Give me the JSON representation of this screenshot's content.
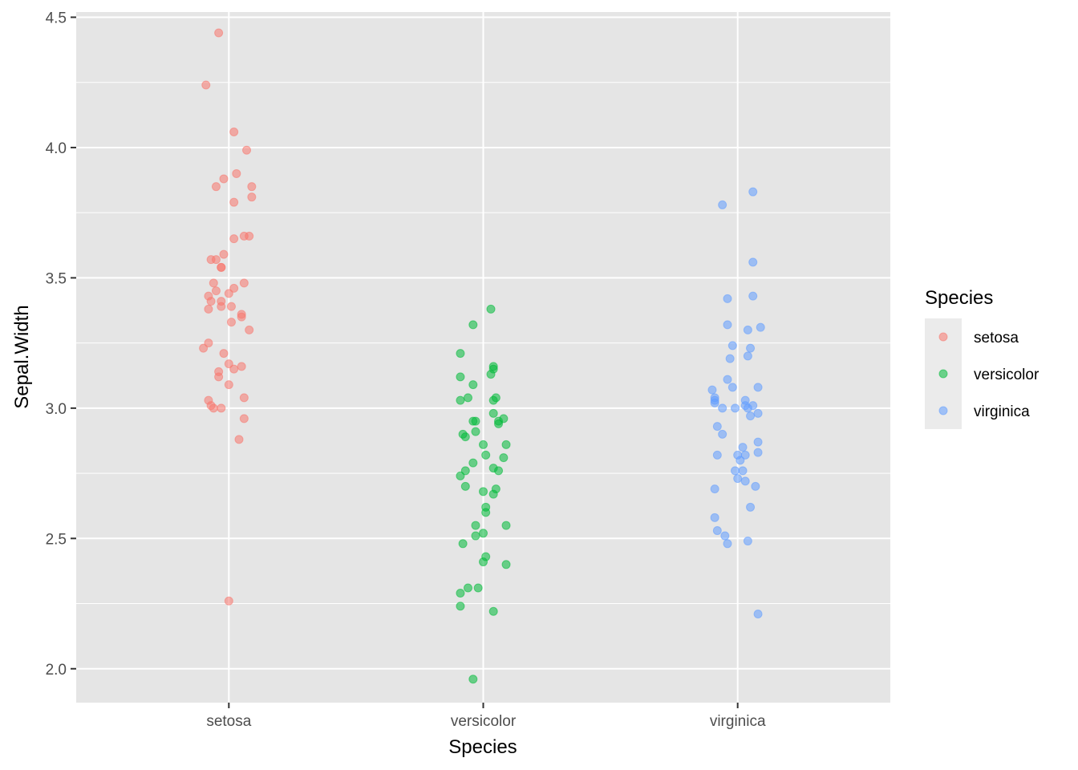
{
  "chart_data": {
    "type": "scatter",
    "subtype": "jitter",
    "title": "",
    "xlabel": "Species",
    "ylabel": "Sepal.Width",
    "categories": [
      "setosa",
      "versicolor",
      "virginica"
    ],
    "ylim": [
      1.87,
      4.52
    ],
    "yticks": [
      2.0,
      2.5,
      3.0,
      3.5,
      4.0,
      4.5
    ],
    "ytick_labels": [
      "2.0",
      "2.5",
      "3.0",
      "3.5",
      "4.0",
      "4.5"
    ],
    "grid": true,
    "legend": {
      "title": "Species",
      "position": "right",
      "entries": [
        "setosa",
        "versicolor",
        "virginica"
      ]
    },
    "colors": {
      "setosa": "#F8766D",
      "versicolor": "#00BA38",
      "virginica": "#619CFF",
      "panel_background": "#E5E5E5",
      "grid": "#FFFFFF"
    },
    "series": [
      {
        "name": "setosa",
        "points": [
          [
            -0.04,
            4.44
          ],
          [
            -0.09,
            4.24
          ],
          [
            0.02,
            4.06
          ],
          [
            0.07,
            3.99
          ],
          [
            0.03,
            3.9
          ],
          [
            -0.02,
            3.88
          ],
          [
            -0.05,
            3.85
          ],
          [
            0.09,
            3.85
          ],
          [
            0.09,
            3.81
          ],
          [
            0.02,
            3.79
          ],
          [
            0.06,
            3.66
          ],
          [
            0.08,
            3.66
          ],
          [
            0.02,
            3.65
          ],
          [
            -0.02,
            3.59
          ],
          [
            -0.07,
            3.57
          ],
          [
            -0.05,
            3.57
          ],
          [
            -0.03,
            3.54
          ],
          [
            -0.03,
            3.54
          ],
          [
            0.06,
            3.48
          ],
          [
            -0.06,
            3.48
          ],
          [
            0.02,
            3.46
          ],
          [
            -0.05,
            3.45
          ],
          [
            0.0,
            3.44
          ],
          [
            -0.08,
            3.43
          ],
          [
            -0.07,
            3.41
          ],
          [
            -0.03,
            3.41
          ],
          [
            -0.03,
            3.39
          ],
          [
            0.01,
            3.39
          ],
          [
            -0.08,
            3.38
          ],
          [
            0.05,
            3.36
          ],
          [
            0.05,
            3.35
          ],
          [
            0.01,
            3.33
          ],
          [
            0.08,
            3.3
          ],
          [
            -0.08,
            3.25
          ],
          [
            -0.1,
            3.23
          ],
          [
            -0.02,
            3.21
          ],
          [
            0.0,
            3.17
          ],
          [
            0.05,
            3.16
          ],
          [
            0.02,
            3.15
          ],
          [
            -0.04,
            3.14
          ],
          [
            -0.04,
            3.12
          ],
          [
            0.0,
            3.09
          ],
          [
            0.06,
            3.04
          ],
          [
            -0.08,
            3.03
          ],
          [
            -0.07,
            3.01
          ],
          [
            -0.06,
            3.0
          ],
          [
            -0.03,
            3.0
          ],
          [
            0.06,
            2.96
          ],
          [
            0.04,
            2.88
          ],
          [
            0.0,
            2.26
          ]
        ]
      },
      {
        "name": "versicolor",
        "points": [
          [
            0.03,
            3.38
          ],
          [
            -0.04,
            3.32
          ],
          [
            -0.09,
            3.21
          ],
          [
            0.04,
            3.16
          ],
          [
            0.04,
            3.15
          ],
          [
            0.03,
            3.13
          ],
          [
            -0.09,
            3.12
          ],
          [
            -0.04,
            3.09
          ],
          [
            -0.06,
            3.04
          ],
          [
            -0.09,
            3.03
          ],
          [
            0.05,
            3.04
          ],
          [
            0.04,
            3.03
          ],
          [
            0.04,
            2.98
          ],
          [
            -0.03,
            2.95
          ],
          [
            0.08,
            2.96
          ],
          [
            -0.04,
            2.95
          ],
          [
            0.06,
            2.95
          ],
          [
            0.06,
            2.94
          ],
          [
            -0.03,
            2.91
          ],
          [
            -0.08,
            2.9
          ],
          [
            -0.07,
            2.89
          ],
          [
            0.09,
            2.86
          ],
          [
            0.0,
            2.86
          ],
          [
            0.01,
            2.82
          ],
          [
            0.08,
            2.81
          ],
          [
            -0.04,
            2.79
          ],
          [
            0.04,
            2.77
          ],
          [
            -0.07,
            2.76
          ],
          [
            0.06,
            2.76
          ],
          [
            -0.09,
            2.74
          ],
          [
            -0.07,
            2.7
          ],
          [
            0.05,
            2.69
          ],
          [
            0.0,
            2.68
          ],
          [
            0.04,
            2.67
          ],
          [
            0.01,
            2.62
          ],
          [
            0.01,
            2.6
          ],
          [
            0.09,
            2.55
          ],
          [
            -0.03,
            2.55
          ],
          [
            0.0,
            2.52
          ],
          [
            -0.03,
            2.51
          ],
          [
            -0.08,
            2.48
          ],
          [
            0.01,
            2.43
          ],
          [
            0.0,
            2.41
          ],
          [
            0.09,
            2.4
          ],
          [
            -0.06,
            2.31
          ],
          [
            -0.02,
            2.31
          ],
          [
            -0.09,
            2.29
          ],
          [
            -0.09,
            2.24
          ],
          [
            0.04,
            2.22
          ],
          [
            -0.04,
            1.96
          ]
        ]
      },
      {
        "name": "virginica",
        "points": [
          [
            0.06,
            3.83
          ],
          [
            -0.06,
            3.78
          ],
          [
            0.06,
            3.56
          ],
          [
            0.06,
            3.43
          ],
          [
            -0.04,
            3.42
          ],
          [
            0.09,
            3.31
          ],
          [
            -0.04,
            3.32
          ],
          [
            0.04,
            3.3
          ],
          [
            -0.02,
            3.24
          ],
          [
            0.05,
            3.23
          ],
          [
            -0.03,
            3.19
          ],
          [
            0.04,
            3.2
          ],
          [
            -0.04,
            3.11
          ],
          [
            -0.02,
            3.08
          ],
          [
            -0.1,
            3.07
          ],
          [
            0.08,
            3.08
          ],
          [
            -0.09,
            3.04
          ],
          [
            -0.09,
            3.03
          ],
          [
            0.03,
            3.03
          ],
          [
            -0.09,
            3.02
          ],
          [
            0.03,
            3.01
          ],
          [
            0.06,
            3.01
          ],
          [
            -0.01,
            3.0
          ],
          [
            -0.06,
            3.0
          ],
          [
            0.04,
            3.0
          ],
          [
            0.08,
            2.98
          ],
          [
            0.05,
            2.97
          ],
          [
            -0.08,
            2.93
          ],
          [
            -0.06,
            2.9
          ],
          [
            0.08,
            2.87
          ],
          [
            0.02,
            2.85
          ],
          [
            0.0,
            2.82
          ],
          [
            0.03,
            2.82
          ],
          [
            -0.08,
            2.82
          ],
          [
            0.08,
            2.83
          ],
          [
            0.01,
            2.8
          ],
          [
            -0.01,
            2.76
          ],
          [
            0.02,
            2.76
          ],
          [
            0.0,
            2.73
          ],
          [
            0.03,
            2.72
          ],
          [
            -0.09,
            2.69
          ],
          [
            0.07,
            2.7
          ],
          [
            0.05,
            2.62
          ],
          [
            -0.09,
            2.58
          ],
          [
            -0.08,
            2.53
          ],
          [
            -0.05,
            2.51
          ],
          [
            0.04,
            2.49
          ],
          [
            -0.04,
            2.48
          ],
          [
            0.08,
            2.21
          ]
        ]
      }
    ]
  }
}
